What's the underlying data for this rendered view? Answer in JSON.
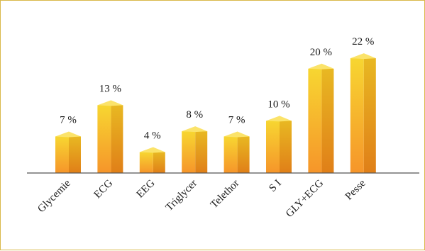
{
  "chart_data": {
    "type": "bar",
    "title": "",
    "xlabel": "",
    "ylabel": "",
    "categories": [
      "Glycemie",
      "ECG",
      "EEG",
      "Triglycer",
      "Telethor",
      "S I",
      "GLY+ECG",
      "Pesse"
    ],
    "values": [
      7,
      13,
      4,
      8,
      7,
      10,
      20,
      22
    ],
    "value_labels": [
      "7 %",
      "13 %",
      "4 %",
      "8 %",
      "7 %",
      "10 %",
      "20 %",
      "22 %"
    ],
    "unit": "%",
    "ylim": [
      0,
      22
    ],
    "grid": false,
    "legend": "none"
  },
  "colors": {
    "bar_front_top": "#f7d631",
    "bar_front_bottom": "#f6952a",
    "bar_side_top": "#e8b822",
    "bar_side_bottom": "#e07f18",
    "bar_top": "#fbe36a",
    "baseline": "#555555",
    "frame_border": "#d9b84a"
  }
}
